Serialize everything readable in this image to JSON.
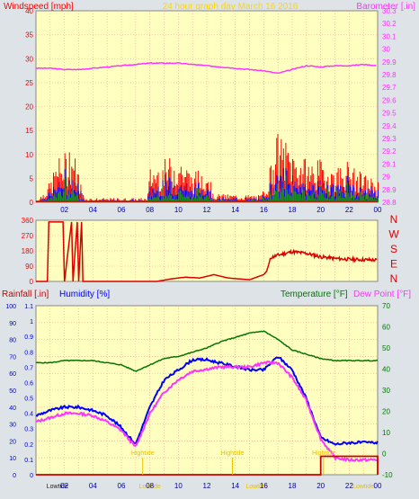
{
  "colors": {
    "plot_bg": "#ffffc0",
    "grid": "#ff9999",
    "wind_gust": "#ff0000",
    "wind_avg": "#0000ff",
    "wind_min": "#009900",
    "barometer": "#ff33ff",
    "direction": "#dd0000",
    "humidity": "#0000ff",
    "temperature": "#007700",
    "dewpoint": "#ff33ff",
    "rainfall": "#cc0000",
    "title": "#ffd700"
  },
  "chart_data": [
    {
      "type": "line",
      "panel": "wind_barometer",
      "title": "24 hour graph day   March 16 2016",
      "ylabel_left": "Windspeed [mph]",
      "ylabel_right": "Barometer [.in]",
      "yticks_left": [
        "0",
        "5",
        "10",
        "15",
        "20",
        "25",
        "30",
        "35",
        "40"
      ],
      "yticks_right": [
        "28.8",
        "28.9",
        "29",
        "29.1",
        "29.2",
        "29.3",
        "29.4",
        "29.5",
        "29.6",
        "29.7",
        "29.8",
        "29.9",
        "30",
        "30.1",
        "30.2",
        "30.3"
      ],
      "xticks": [
        "02",
        "04",
        "06",
        "08",
        "10",
        "12",
        "14",
        "16",
        "18",
        "20",
        "22",
        "00"
      ],
      "ylim_left": [
        0,
        40
      ],
      "ylim_right": [
        28.8,
        30.3
      ],
      "series": [
        {
          "name": "Barometer",
          "x": [
            0,
            1,
            2,
            3,
            4,
            5,
            6,
            7,
            8,
            9,
            10,
            11,
            12,
            13,
            14,
            15,
            16,
            17,
            18,
            19,
            20,
            21,
            22,
            23,
            24
          ],
          "values": [
            29.85,
            29.85,
            29.84,
            29.84,
            29.85,
            29.86,
            29.87,
            29.88,
            29.89,
            29.89,
            29.89,
            29.88,
            29.87,
            29.86,
            29.85,
            29.84,
            29.83,
            29.81,
            29.84,
            29.87,
            29.86,
            29.87,
            29.87,
            29.88,
            29.87
          ]
        }
      ]
    },
    {
      "type": "line",
      "panel": "wind_direction",
      "yticks": [
        "0",
        "90",
        "180",
        "270",
        "360"
      ],
      "compass": [
        "N",
        "W",
        "S",
        "E",
        "N"
      ],
      "ylim": [
        0,
        360
      ],
      "series": [
        {
          "name": "Direction",
          "x": [
            0,
            0.8,
            0.9,
            1.9,
            2.0,
            2.5,
            2.6,
            2.9,
            3.0,
            3.2,
            3.3,
            8.5,
            9.5,
            10.5,
            11.5,
            12.5,
            13.5,
            15.0,
            16.0,
            16.2,
            16.5,
            17.0,
            18.0,
            19.0,
            20.0,
            21.0,
            22.0,
            23.0,
            24.0
          ],
          "values": [
            0,
            0,
            350,
            350,
            0,
            350,
            0,
            350,
            0,
            350,
            0,
            0,
            15,
            25,
            20,
            40,
            20,
            10,
            40,
            60,
            140,
            155,
            175,
            165,
            145,
            135,
            130,
            128,
            125
          ]
        }
      ]
    },
    {
      "type": "line",
      "panel": "temp_humidity_rain",
      "ylabel_rain": "Rainfall [.in]",
      "ylabel_humidity": "Humidity [%]",
      "ylabel_temp": "Temperature [°F]",
      "ylabel_dew": "Dew Point [°F]",
      "yticks_humidity": [
        "0",
        "10",
        "20",
        "30",
        "40",
        "50",
        "60",
        "70",
        "80",
        "90",
        "100"
      ],
      "yticks_rain": [
        "0",
        "0.1",
        "0.2",
        "0.3",
        "0.4",
        "0.5",
        "0.6",
        "0.7",
        "0.8",
        "0.9",
        "1",
        "1.1"
      ],
      "yticks_temp": [
        "-10",
        "0",
        "10",
        "20",
        "30",
        "40",
        "50",
        "60",
        "70"
      ],
      "xticks": [
        "02",
        "04",
        "06",
        "08",
        "10",
        "12",
        "14",
        "16",
        "18",
        "20",
        "22",
        "00"
      ],
      "ylim_humidity": [
        0,
        100
      ],
      "ylim_rain": [
        0,
        1.1
      ],
      "ylim_temp": [
        -10,
        70
      ],
      "annotations": [
        "Lowtide",
        "Hightide",
        "Lowtide",
        "Hightide",
        "Lowtide",
        "Hightide",
        "Lowtide"
      ],
      "series": [
        {
          "name": "Temperature",
          "x": [
            0,
            1,
            2,
            3,
            4,
            5,
            6,
            7,
            8,
            9,
            10,
            11,
            12,
            13,
            14,
            15,
            16,
            17,
            18,
            19,
            20,
            21,
            22,
            23,
            24
          ],
          "values": [
            43,
            43,
            44,
            44,
            44,
            43,
            42,
            39,
            42,
            45,
            46,
            48,
            50,
            53,
            55,
            57,
            58,
            54,
            49,
            47,
            45,
            44,
            44,
            44,
            44
          ]
        },
        {
          "name": "Humidity",
          "x": [
            0,
            1,
            2,
            3,
            4,
            5,
            6,
            7,
            8,
            9,
            10,
            11,
            12,
            13,
            14,
            15,
            16,
            17,
            18,
            19,
            20,
            21,
            22,
            23,
            24
          ],
          "values": [
            35,
            38,
            40,
            40,
            38,
            35,
            28,
            18,
            40,
            56,
            62,
            68,
            68,
            66,
            64,
            62,
            62,
            70,
            62,
            45,
            22,
            18,
            19,
            19,
            19
          ]
        },
        {
          "name": "Dew Point",
          "x": [
            0,
            1,
            2,
            3,
            4,
            5,
            6,
            7,
            8,
            9,
            10,
            11,
            12,
            13,
            14,
            15,
            16,
            17,
            18,
            19,
            20,
            21,
            22,
            23,
            24
          ],
          "values": [
            15,
            17,
            19,
            19,
            18,
            15,
            11,
            3,
            19,
            29,
            35,
            39,
            40,
            41,
            41,
            41,
            43,
            43,
            36,
            25,
            7,
            -2,
            -3,
            -3,
            -3
          ]
        },
        {
          "name": "Rainfall",
          "x": [
            0,
            18.5,
            19.5,
            20.0,
            24.0
          ],
          "values": [
            0,
            0,
            0,
            0.12,
            0.12
          ]
        }
      ]
    }
  ]
}
